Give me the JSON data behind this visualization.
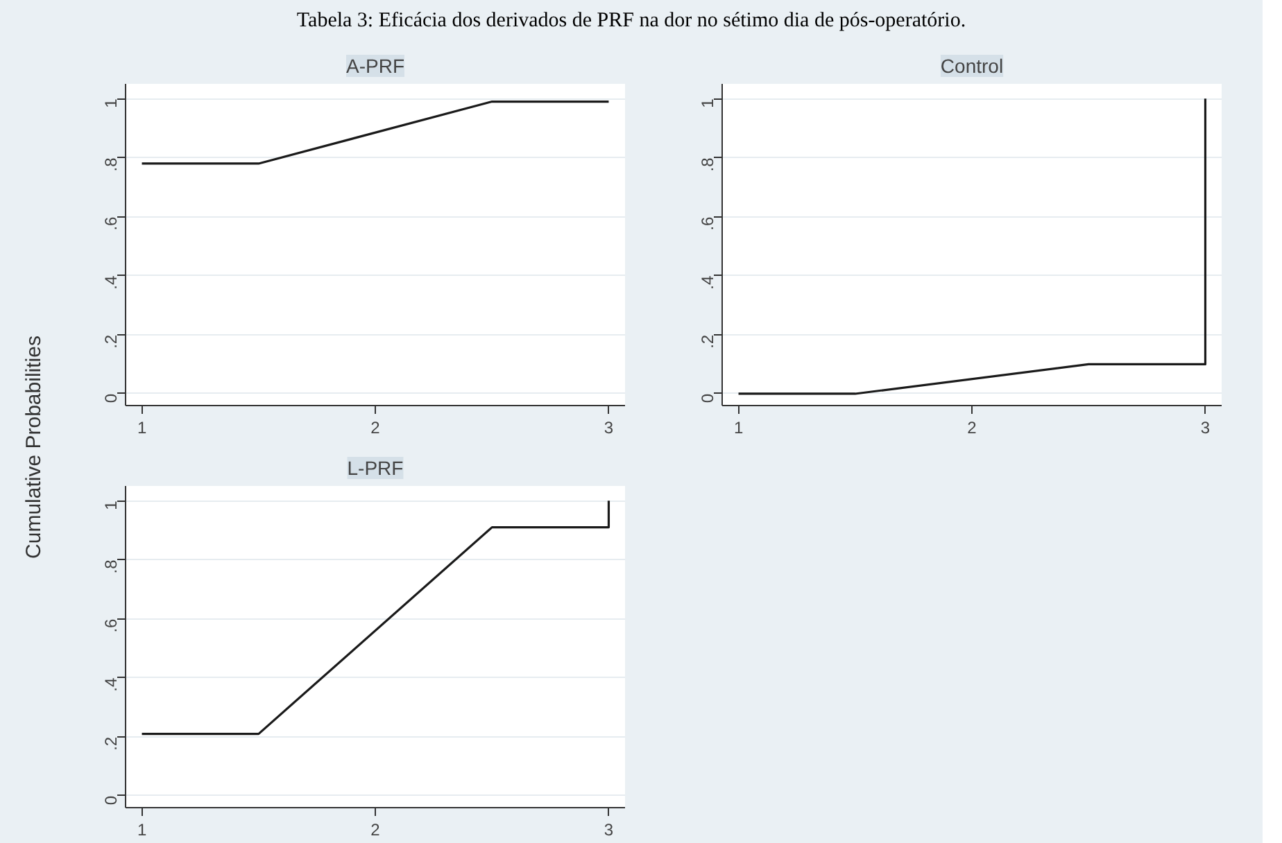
{
  "chart_data": [
    {
      "type": "line",
      "title": "A-PRF",
      "ylabel": "Cumulative Probabilities",
      "annotations": [
        "Tabela 3: Eficácia dos derivados de PRF na dor no sétimo dia de pós-operatório."
      ],
      "xlim": [
        0.93,
        3.07
      ],
      "xticks": [
        1,
        2,
        3
      ],
      "ylim": [
        -0.04,
        1.05
      ],
      "yticks": [
        0,
        {
          "value": 0.2,
          "label": ".2"
        },
        {
          "value": 0.4,
          "label": ".4"
        },
        {
          "value": 0.6,
          "label": ".6"
        },
        {
          "value": 0.8,
          "label": ".8"
        },
        1
      ],
      "grid": "y",
      "series": [
        {
          "color": "#1a1a1a",
          "x": [
            1,
            1.5,
            2.5,
            3
          ],
          "values": [
            0.78,
            0.78,
            0.99,
            0.99
          ]
        }
      ]
    },
    {
      "type": "line",
      "title": "Control",
      "xlim": [
        0.93,
        3.07
      ],
      "xticks": [
        1,
        2,
        3
      ],
      "ylim": [
        -0.04,
        1.05
      ],
      "yticks": [
        0,
        {
          "value": 0.2,
          "label": ".2"
        },
        {
          "value": 0.4,
          "label": ".4"
        },
        {
          "value": 0.6,
          "label": ".6"
        },
        {
          "value": 0.8,
          "label": ".8"
        },
        1
      ],
      "grid": "y",
      "series": [
        {
          "color": "#1a1a1a",
          "x": [
            1,
            1.5,
            2.5,
            3,
            3
          ],
          "values": [
            0,
            0,
            0.1,
            0.1,
            1
          ]
        }
      ]
    },
    {
      "type": "line",
      "title": "L-PRF",
      "xlim": [
        0.93,
        3.07
      ],
      "xticks": [
        1,
        2,
        3
      ],
      "ylim": [
        -0.04,
        1.05
      ],
      "yticks": [
        0,
        {
          "value": 0.2,
          "label": ".2"
        },
        {
          "value": 0.4,
          "label": ".4"
        },
        {
          "value": 0.6,
          "label": ".6"
        },
        {
          "value": 0.8,
          "label": ".8"
        },
        1
      ],
      "grid": "y",
      "series": [
        {
          "color": "#1a1a1a",
          "x": [
            1,
            1.5,
            2.5,
            3,
            3
          ],
          "values": [
            0.21,
            0.21,
            0.91,
            0.91,
            1
          ]
        }
      ]
    }
  ]
}
